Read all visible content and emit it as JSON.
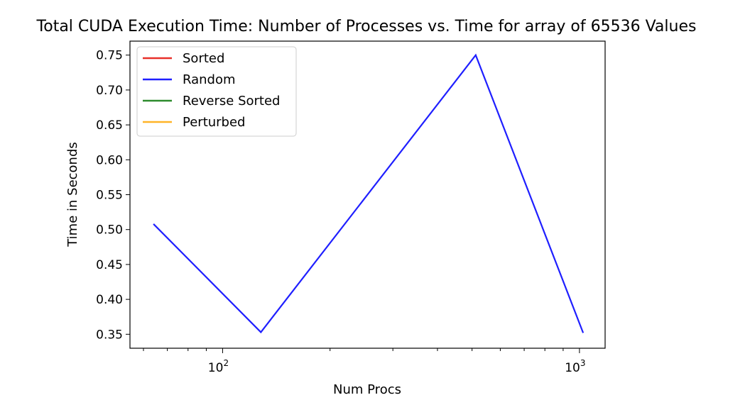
{
  "chart_data": {
    "type": "line",
    "title": "Total CUDA Execution Time: Number of Processes vs. Time for array of 65536 Values",
    "xlabel": "Num Procs",
    "ylabel": "Time in Seconds",
    "x_scale": "log",
    "xlim": [
      55,
      1180
    ],
    "ylim": [
      0.33,
      0.77
    ],
    "x_major_ticks": [
      {
        "value": 100,
        "base": "10",
        "exp": "2"
      },
      {
        "value": 1000,
        "base": "10",
        "exp": "3"
      }
    ],
    "x_minor_ticks": [
      60,
      70,
      80,
      90,
      200,
      300,
      400,
      500,
      600,
      700,
      800,
      900
    ],
    "y_ticks": [
      {
        "value": 0.35,
        "label": "0.35"
      },
      {
        "value": 0.4,
        "label": "0.40"
      },
      {
        "value": 0.45,
        "label": "0.45"
      },
      {
        "value": 0.5,
        "label": "0.50"
      },
      {
        "value": 0.55,
        "label": "0.55"
      },
      {
        "value": 0.6,
        "label": "0.60"
      },
      {
        "value": 0.65,
        "label": "0.65"
      },
      {
        "value": 0.7,
        "label": "0.70"
      },
      {
        "value": 0.75,
        "label": "0.75"
      }
    ],
    "legend_position": "top-left",
    "grid": false,
    "series": [
      {
        "name": "Sorted",
        "color": "#e8302a",
        "x": [
          64,
          128,
          512,
          1024
        ],
        "y": [
          0.508,
          0.353,
          0.75,
          0.352
        ]
      },
      {
        "name": "Random",
        "color": "#1f1fff",
        "x": [
          64,
          128,
          512,
          1024
        ],
        "y": [
          0.508,
          0.353,
          0.75,
          0.352
        ]
      },
      {
        "name": "Reverse Sorted",
        "color": "#2e8b2e",
        "x": [
          64,
          128,
          512,
          1024
        ],
        "y": [
          0.508,
          0.353,
          0.75,
          0.352
        ]
      },
      {
        "name": "Perturbed",
        "color": "#ffb428",
        "x": [
          64,
          128,
          512,
          1024
        ],
        "y": [
          0.508,
          0.353,
          0.75,
          0.352
        ]
      }
    ],
    "visible_series": "Random"
  }
}
